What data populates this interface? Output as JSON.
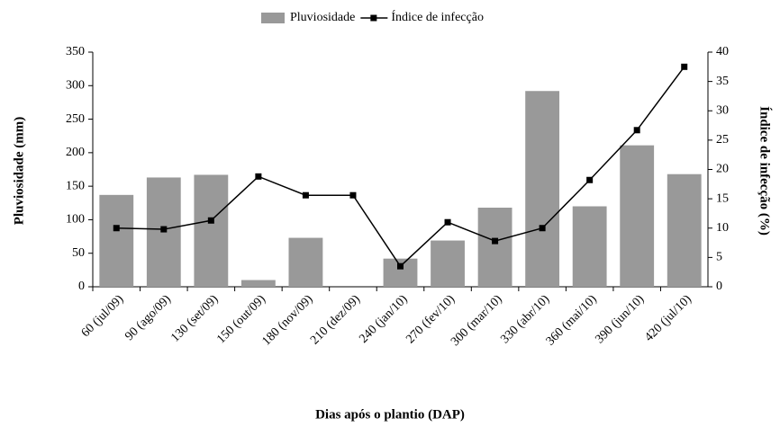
{
  "chart_data": {
    "type": "bar_line",
    "xlabel": "Dias após o plantio (DAP)",
    "ylabel": "Pluviosidade (mm)",
    "y2label": "Índice de infecção (%)",
    "categories": [
      "60 (jul/09)",
      "90 (ago/09)",
      "130 (set/09)",
      "150 (out/09)",
      "180 (nov/09)",
      "210 (dez/09)",
      "240 (jan/10)",
      "270 (fev/10)",
      "300 (mar/10)",
      "330 (abr/10)",
      "360 (mai/10)",
      "390 (jun/10)",
      "420 (jul/10)"
    ],
    "series": [
      {
        "name": "Pluviosidade",
        "color": "#999999",
        "kind": "bar",
        "values": [
          137,
          163,
          167,
          10,
          73,
          0,
          42,
          69,
          118,
          292,
          120,
          211,
          168
        ]
      },
      {
        "name": "Índice de infecção",
        "color": "#000000",
        "kind": "line",
        "axis": "y2",
        "values": [
          10,
          9.8,
          11.3,
          18.8,
          15.6,
          15.6,
          3.5,
          11,
          7.8,
          10,
          18.2,
          26.7,
          37.5
        ]
      }
    ],
    "ylim": [
      0,
      350
    ],
    "yticks": [
      0,
      50,
      100,
      150,
      200,
      250,
      300,
      350
    ],
    "y2lim": [
      0,
      40
    ],
    "y2ticks": [
      0,
      5,
      10,
      15,
      20,
      25,
      30,
      35,
      40
    ],
    "legend": "top"
  }
}
